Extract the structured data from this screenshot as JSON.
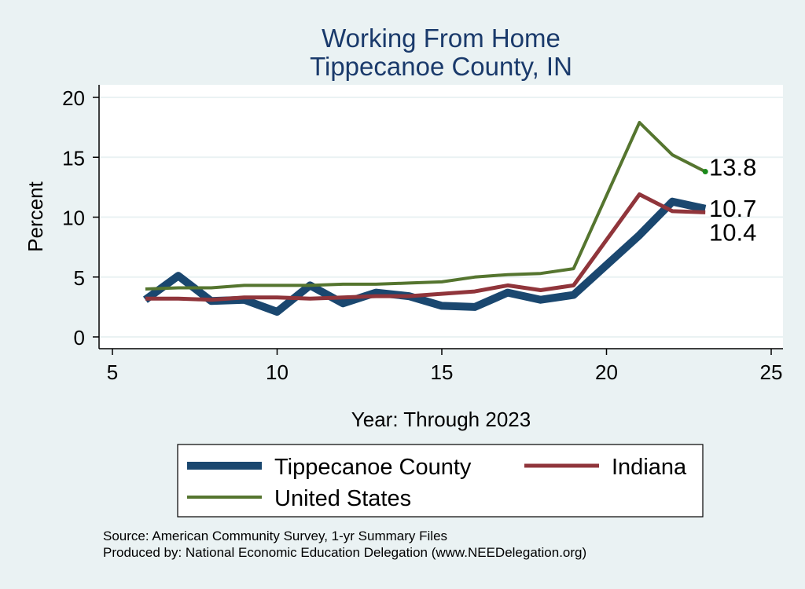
{
  "chart_data": {
    "type": "line",
    "title": "Working From Home",
    "subtitle": "Tippecanoe County, IN",
    "xlabel": "Year: Through 2023",
    "ylabel": "Percent",
    "xlim": [
      5,
      25
    ],
    "ylim": [
      0,
      20
    ],
    "xticks": [
      5,
      10,
      15,
      20,
      25
    ],
    "yticks": [
      0,
      5,
      10,
      15,
      20
    ],
    "grid": true,
    "legend_position": "bottom",
    "series": [
      {
        "name": "Tippecanoe County",
        "color": "#1a476f",
        "x": [
          6,
          7,
          8,
          9,
          10,
          11,
          12,
          13,
          14,
          15,
          16,
          17,
          18,
          19,
          21,
          22,
          23
        ],
        "values": [
          3.1,
          5.1,
          3.0,
          3.1,
          2.1,
          4.3,
          2.8,
          3.7,
          3.4,
          2.6,
          2.5,
          3.7,
          3.1,
          3.5,
          8.5,
          11.3,
          10.7
        ],
        "end_label": "10.7"
      },
      {
        "name": "Indiana",
        "color": "#90353b",
        "x": [
          6,
          7,
          8,
          9,
          10,
          11,
          12,
          13,
          14,
          15,
          16,
          17,
          18,
          19,
          21,
          22,
          23
        ],
        "values": [
          3.2,
          3.2,
          3.1,
          3.3,
          3.3,
          3.2,
          3.3,
          3.4,
          3.4,
          3.6,
          3.8,
          4.3,
          3.9,
          4.3,
          11.9,
          10.5,
          10.4
        ],
        "end_label": "10.4"
      },
      {
        "name": "United States",
        "color": "#55752f",
        "x": [
          6,
          7,
          8,
          9,
          10,
          11,
          12,
          13,
          14,
          15,
          16,
          17,
          18,
          19,
          21,
          22,
          23
        ],
        "values": [
          4.0,
          4.1,
          4.1,
          4.3,
          4.3,
          4.3,
          4.4,
          4.4,
          4.5,
          4.6,
          5.0,
          5.2,
          5.3,
          5.7,
          17.9,
          15.2,
          13.8
        ],
        "end_label": "13.8"
      }
    ],
    "notes": [
      "Source: American Community Survey, 1-yr Summary Files",
      "Produced by: National Economic Education Delegation (www.NEEDelegation.org)"
    ]
  }
}
